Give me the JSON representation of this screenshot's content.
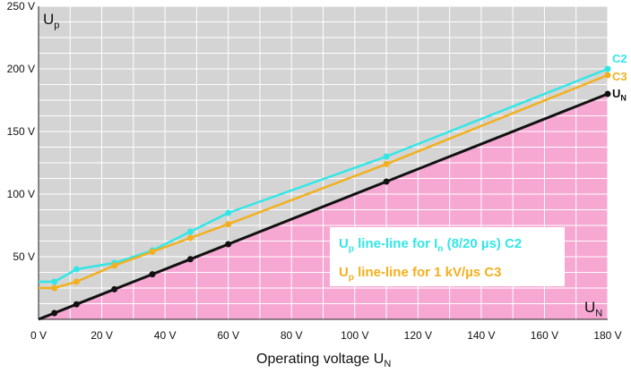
{
  "chart_data": {
    "type": "line",
    "xlabel_main": "Operating voltage U",
    "xlabel_sub": "N",
    "ylabel_main": "U",
    "ylabel_sub": "p",
    "corner_label_main": "U",
    "corner_label_sub": "N",
    "xlim": [
      0,
      180
    ],
    "ylim": [
      0,
      250
    ],
    "x_ticks": [
      0,
      20,
      40,
      60,
      80,
      100,
      120,
      140,
      160,
      180
    ],
    "x_tick_labels": [
      "0 V",
      "20 V",
      "40 V",
      "60 V",
      "80 V",
      "100 V",
      "120 V",
      "140 V",
      "160 V",
      "180 V"
    ],
    "y_ticks": [
      50,
      100,
      150,
      200,
      250
    ],
    "y_tick_labels": [
      "50 V",
      "100 V",
      "150 V",
      "200 V",
      "250 V"
    ],
    "grid": true,
    "series": [
      {
        "name": "C2",
        "color": "#33e6e6",
        "x": [
          0,
          5,
          12,
          24,
          36,
          48,
          60,
          110,
          180
        ],
        "y": [
          30,
          30,
          40,
          45,
          55,
          70,
          85,
          130,
          200
        ]
      },
      {
        "name": "C3",
        "color": "#f2b01e",
        "x": [
          0,
          5,
          12,
          24,
          36,
          48,
          60,
          110,
          180
        ],
        "y": [
          25,
          25,
          30,
          43,
          54,
          65,
          76,
          124,
          195
        ]
      },
      {
        "name": "U",
        "name_sub": "N",
        "color": "#111111",
        "x": [
          0,
          5,
          12,
          24,
          36,
          48,
          60,
          110,
          180
        ],
        "y": [
          0,
          5,
          12,
          24,
          36,
          48,
          60,
          110,
          180
        ]
      }
    ],
    "legend": [
      {
        "main": "U",
        "sub": "p",
        "text": " line-line for I",
        "sub2": "n",
        "text2": " (8/20 µs) C2",
        "color": "#33e6e6"
      },
      {
        "main": "U",
        "sub": "p",
        "text": " line-line for 1 kV/µs C3",
        "sub2": "",
        "text2": "",
        "color": "#f2b01e"
      }
    ],
    "legend_position": "bottom-right",
    "background_colors": {
      "above": "#d4d4d4",
      "below": "#f6a8d3"
    }
  }
}
